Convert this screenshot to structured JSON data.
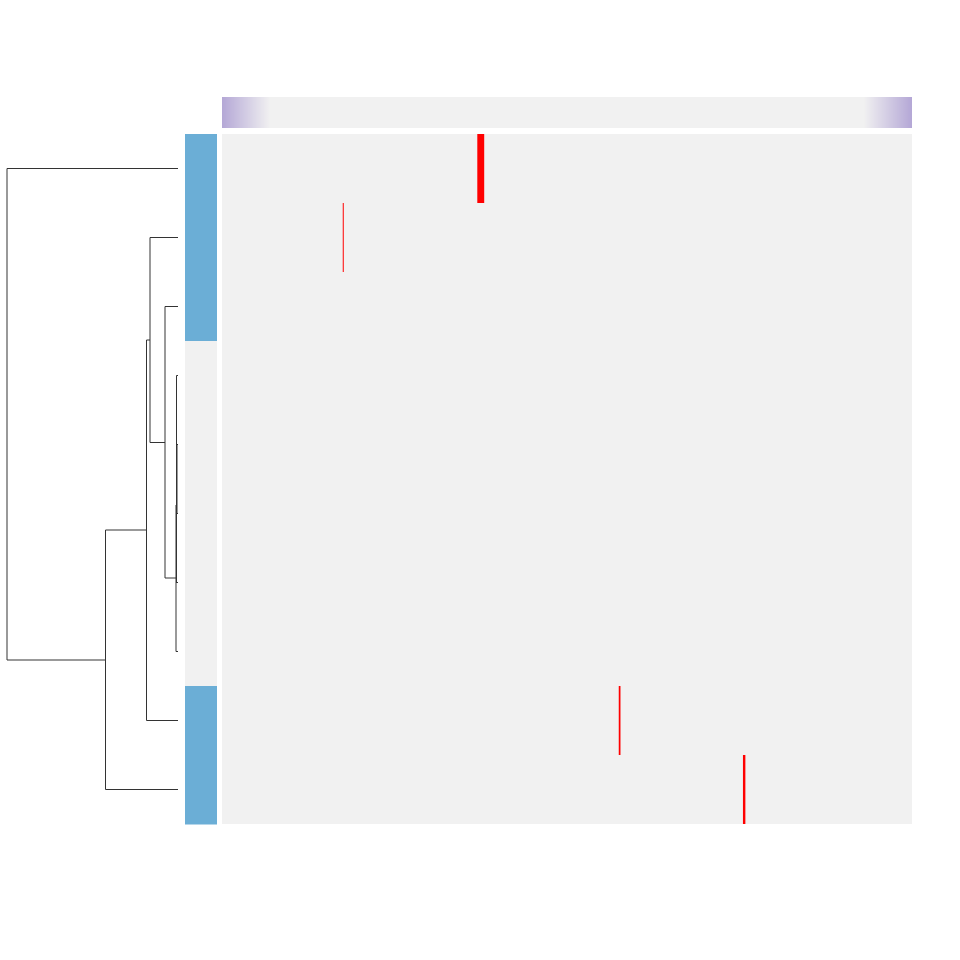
{
  "colors": {
    "background": "#ffffff",
    "cell_base": "#f1f1f1",
    "cell_hit": "#ff0000",
    "row_group_annotated": "#6baed6",
    "row_group_plain": "#f1f1f1",
    "col_band_edge": "#b4a7d6",
    "dendrogram_line": "#333333"
  },
  "chart_data": {
    "type": "heatmap",
    "title": "",
    "xlabel": "",
    "ylabel": "",
    "n_rows": 10,
    "n_cols": 200,
    "legend": "none",
    "row_annotation": [
      1,
      1,
      1,
      0,
      0,
      0,
      0,
      0,
      1,
      1
    ],
    "highlighted_cells": [
      {
        "row": 0,
        "col": 74,
        "span": 2,
        "value": 1
      },
      {
        "row": 1,
        "col": 35,
        "span": 0.25,
        "value": 1
      },
      {
        "row": 8,
        "col": 115,
        "span": 0.5,
        "value": 1
      },
      {
        "row": 9,
        "col": 151,
        "span": 0.7,
        "value": 1
      }
    ],
    "row_dendrogram": {
      "max_height": 100,
      "merges": [
        {
          "a": 4,
          "b": 5,
          "h": 0.5
        },
        {
          "a": 3,
          "b": "m0",
          "h": 0.8
        },
        {
          "a": 6,
          "b": "m1",
          "h": 1.0
        },
        {
          "a": 7,
          "b": "m2",
          "h": 1.2
        },
        {
          "a": 2,
          "b": "m3",
          "h": 7.5
        },
        {
          "a": 1,
          "b": "m4",
          "h": 16.5
        },
        {
          "a": 8,
          "b": "m5",
          "h": 18.5
        },
        {
          "a": 9,
          "b": "m6",
          "h": 42.5
        },
        {
          "a": 0,
          "b": "m7",
          "h": 100
        }
      ]
    }
  }
}
